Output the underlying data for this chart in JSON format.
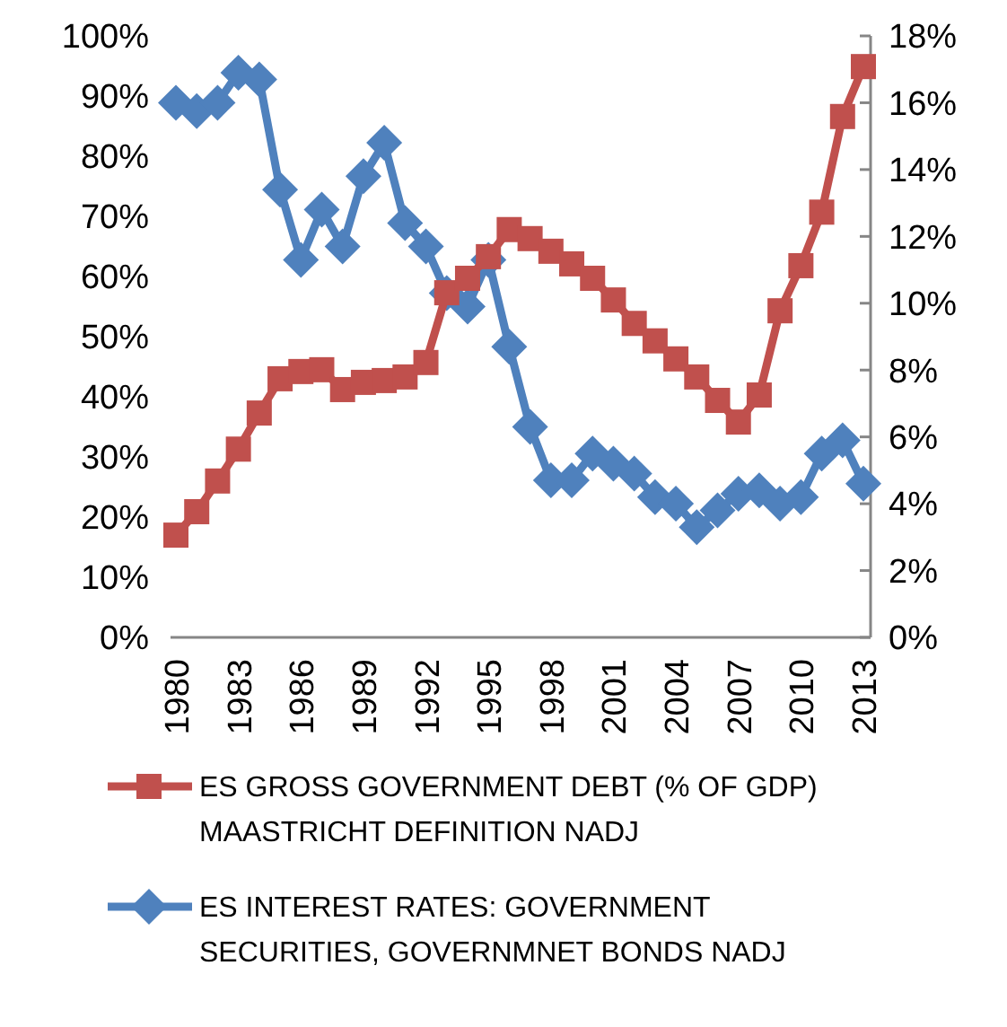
{
  "chart_data": {
    "type": "line",
    "categories": [
      "1980",
      null,
      null,
      "1983",
      null,
      null,
      "1986",
      null,
      null,
      "1989",
      null,
      null,
      "1992",
      null,
      null,
      "1995",
      null,
      null,
      "1998",
      null,
      null,
      "2001",
      null,
      null,
      "2004",
      null,
      null,
      "2007",
      null,
      null,
      "2010",
      null,
      null,
      "2013"
    ],
    "series": [
      {
        "name": "ES GROSS GOVERNMENT DEBT (% OF GDP) MAASTRICHT DEFINITION NADJ",
        "color": "#c0504d",
        "marker": "square",
        "values": [
          17,
          20.9,
          26,
          31.3,
          37.3,
          43,
          44.2,
          44.5,
          41.2,
          42.4,
          42.7,
          43.3,
          45.7,
          57.3,
          59.7,
          63.3,
          67.8,
          66.3,
          64.2,
          62.1,
          59.7,
          56.1,
          52.2,
          49.3,
          46.3,
          43.3,
          39.4,
          35.8,
          40.3,
          54.3,
          61.8,
          70.7,
          86.6,
          94.9
        ]
      },
      {
        "name": "ES INTEREST RATES: GOVERNMENT SECURITIES, GOVERNMNET BONDS NADJ",
        "color": "#4f81bd",
        "marker": "diamond",
        "axis": "y2",
        "values": [
          16,
          15.75,
          16,
          16.9,
          16.7,
          13.4,
          11.3,
          12.8,
          11.7,
          13.8,
          14.8,
          12.4,
          11.7,
          10.3,
          9.9,
          11.3,
          8.7,
          6.3,
          4.7,
          4.7,
          5.5,
          5.2,
          4.9,
          4.2,
          4,
          3.3,
          3.8,
          4.3,
          4.4,
          4,
          4.2,
          5.5,
          5.9,
          4.6
        ]
      }
    ],
    "ylim": [
      0,
      100
    ],
    "yticks": [
      {
        "value": 0,
        "label": "0%"
      },
      {
        "value": 10,
        "label": "10%"
      },
      {
        "value": 20,
        "label": "20%"
      },
      {
        "value": 30,
        "label": "30%"
      },
      {
        "value": 40,
        "label": "40%"
      },
      {
        "value": 50,
        "label": "50%"
      },
      {
        "value": 60,
        "label": "60%"
      },
      {
        "value": 70,
        "label": "70%"
      },
      {
        "value": 80,
        "label": "80%"
      },
      {
        "value": 90,
        "label": "90%"
      },
      {
        "value": 100,
        "label": "100%"
      }
    ],
    "y2lim": [
      0,
      18
    ],
    "y2ticks": [
      {
        "value": 0,
        "label": "0%"
      },
      {
        "value": 2,
        "label": "2%"
      },
      {
        "value": 4,
        "label": "4%"
      },
      {
        "value": 6,
        "label": "6%"
      },
      {
        "value": 8,
        "label": "8%"
      },
      {
        "value": 10,
        "label": "10%"
      },
      {
        "value": 12,
        "label": "12%"
      },
      {
        "value": 14,
        "label": "14%"
      },
      {
        "value": 16,
        "label": "16%"
      },
      {
        "value": 18,
        "label": "18%"
      }
    ],
    "grid": false,
    "legend": "bottom",
    "line_style": "solid"
  }
}
